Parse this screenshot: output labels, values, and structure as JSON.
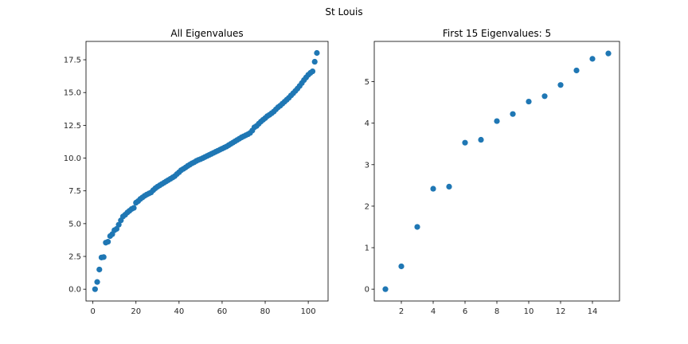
{
  "figure": {
    "suptitle": "St Louis"
  },
  "chart_data": [
    {
      "type": "scatter",
      "title": "All Eigenvalues",
      "xlabel": "",
      "ylabel": "",
      "xlim": [
        -3.2,
        109.2
      ],
      "ylim": [
        -0.9,
        18.9
      ],
      "xticks": [
        0,
        20,
        40,
        60,
        80,
        100
      ],
      "yticks": [
        0.0,
        2.5,
        5.0,
        7.5,
        10.0,
        12.5,
        15.0,
        17.5
      ],
      "ytick_labels": [
        "0.0",
        "2.5",
        "5.0",
        "7.5",
        "10.0",
        "12.5",
        "15.0",
        "17.5"
      ],
      "grid": false,
      "color": "#1f77b4",
      "x": [
        1,
        2,
        3,
        4,
        5,
        6,
        7,
        8,
        9,
        10,
        11,
        12,
        13,
        14,
        15,
        16,
        17,
        18,
        19,
        20,
        21,
        22,
        23,
        24,
        25,
        26,
        27,
        28,
        29,
        30,
        31,
        32,
        33,
        34,
        35,
        36,
        37,
        38,
        39,
        40,
        41,
        42,
        43,
        44,
        45,
        46,
        47,
        48,
        49,
        50,
        51,
        52,
        53,
        54,
        55,
        56,
        57,
        58,
        59,
        60,
        61,
        62,
        63,
        64,
        65,
        66,
        67,
        68,
        69,
        70,
        71,
        72,
        73,
        74,
        75,
        76,
        77,
        78,
        79,
        80,
        81,
        82,
        83,
        84,
        85,
        86,
        87,
        88,
        89,
        90,
        91,
        92,
        93,
        94,
        95,
        96,
        97,
        98,
        99,
        100,
        101,
        102,
        103,
        104
      ],
      "y": [
        0.0,
        0.55,
        1.5,
        2.42,
        2.45,
        3.55,
        3.62,
        4.05,
        4.2,
        4.5,
        4.6,
        4.92,
        5.25,
        5.55,
        5.68,
        5.85,
        5.98,
        6.12,
        6.2,
        6.6,
        6.72,
        6.88,
        7.0,
        7.12,
        7.22,
        7.3,
        7.38,
        7.55,
        7.7,
        7.82,
        7.92,
        8.02,
        8.12,
        8.22,
        8.32,
        8.42,
        8.52,
        8.62,
        8.78,
        8.92,
        9.08,
        9.18,
        9.28,
        9.4,
        9.5,
        9.6,
        9.68,
        9.78,
        9.86,
        9.92,
        10.0,
        10.08,
        10.16,
        10.24,
        10.32,
        10.4,
        10.48,
        10.56,
        10.64,
        10.72,
        10.8,
        10.88,
        10.98,
        11.08,
        11.18,
        11.28,
        11.38,
        11.48,
        11.58,
        11.66,
        11.74,
        11.82,
        11.92,
        12.1,
        12.35,
        12.45,
        12.62,
        12.78,
        12.92,
        13.05,
        13.2,
        13.3,
        13.42,
        13.55,
        13.72,
        13.88,
        14.0,
        14.15,
        14.3,
        14.45,
        14.6,
        14.78,
        14.95,
        15.12,
        15.3,
        15.5,
        15.72,
        15.95,
        16.15,
        16.35,
        16.5,
        16.62,
        17.35,
        18.02
      ]
    },
    {
      "type": "scatter",
      "title": "First 15 Eigenvalues: 5",
      "xlabel": "",
      "ylabel": "",
      "xlim": [
        0.3,
        15.7
      ],
      "ylim": [
        -0.285,
        5.97
      ],
      "xticks": [
        2,
        4,
        6,
        8,
        10,
        12,
        14
      ],
      "yticks": [
        0,
        1,
        2,
        3,
        4,
        5
      ],
      "ytick_labels": [
        "0",
        "1",
        "2",
        "3",
        "4",
        "5"
      ],
      "grid": false,
      "color": "#1f77b4",
      "x": [
        1,
        2,
        3,
        4,
        5,
        6,
        7,
        8,
        9,
        10,
        11,
        12,
        13,
        14,
        15
      ],
      "y": [
        0.0,
        0.55,
        1.5,
        2.42,
        2.47,
        3.53,
        3.6,
        4.05,
        4.22,
        4.52,
        4.65,
        4.92,
        5.27,
        5.55,
        5.68
      ]
    }
  ]
}
